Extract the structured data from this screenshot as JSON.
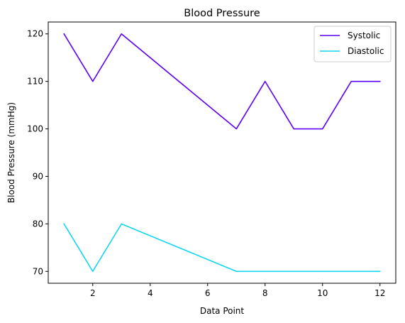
{
  "chart_data": {
    "type": "line",
    "title": "Blood Pressure",
    "xlabel": "Data Point",
    "ylabel": "Blood Pressure (mmHg)",
    "x": [
      1,
      2,
      3,
      7,
      8,
      9,
      10,
      11,
      12
    ],
    "xlim": [
      0.45,
      12.55
    ],
    "ylim": [
      67.5,
      122.5
    ],
    "xticks": [
      2,
      4,
      6,
      8,
      10,
      12
    ],
    "yticks": [
      70,
      80,
      90,
      100,
      110,
      120
    ],
    "grid": false,
    "legend_position": "top-right",
    "series": [
      {
        "name": "Systolic",
        "color": "#5b00f0",
        "values": [
          120,
          110,
          120,
          100,
          110,
          100,
          100,
          110,
          110
        ]
      },
      {
        "name": "Diastolic",
        "color": "#12d6f0",
        "values": [
          80,
          70,
          80,
          70,
          70,
          70,
          70,
          70,
          70
        ]
      }
    ]
  }
}
